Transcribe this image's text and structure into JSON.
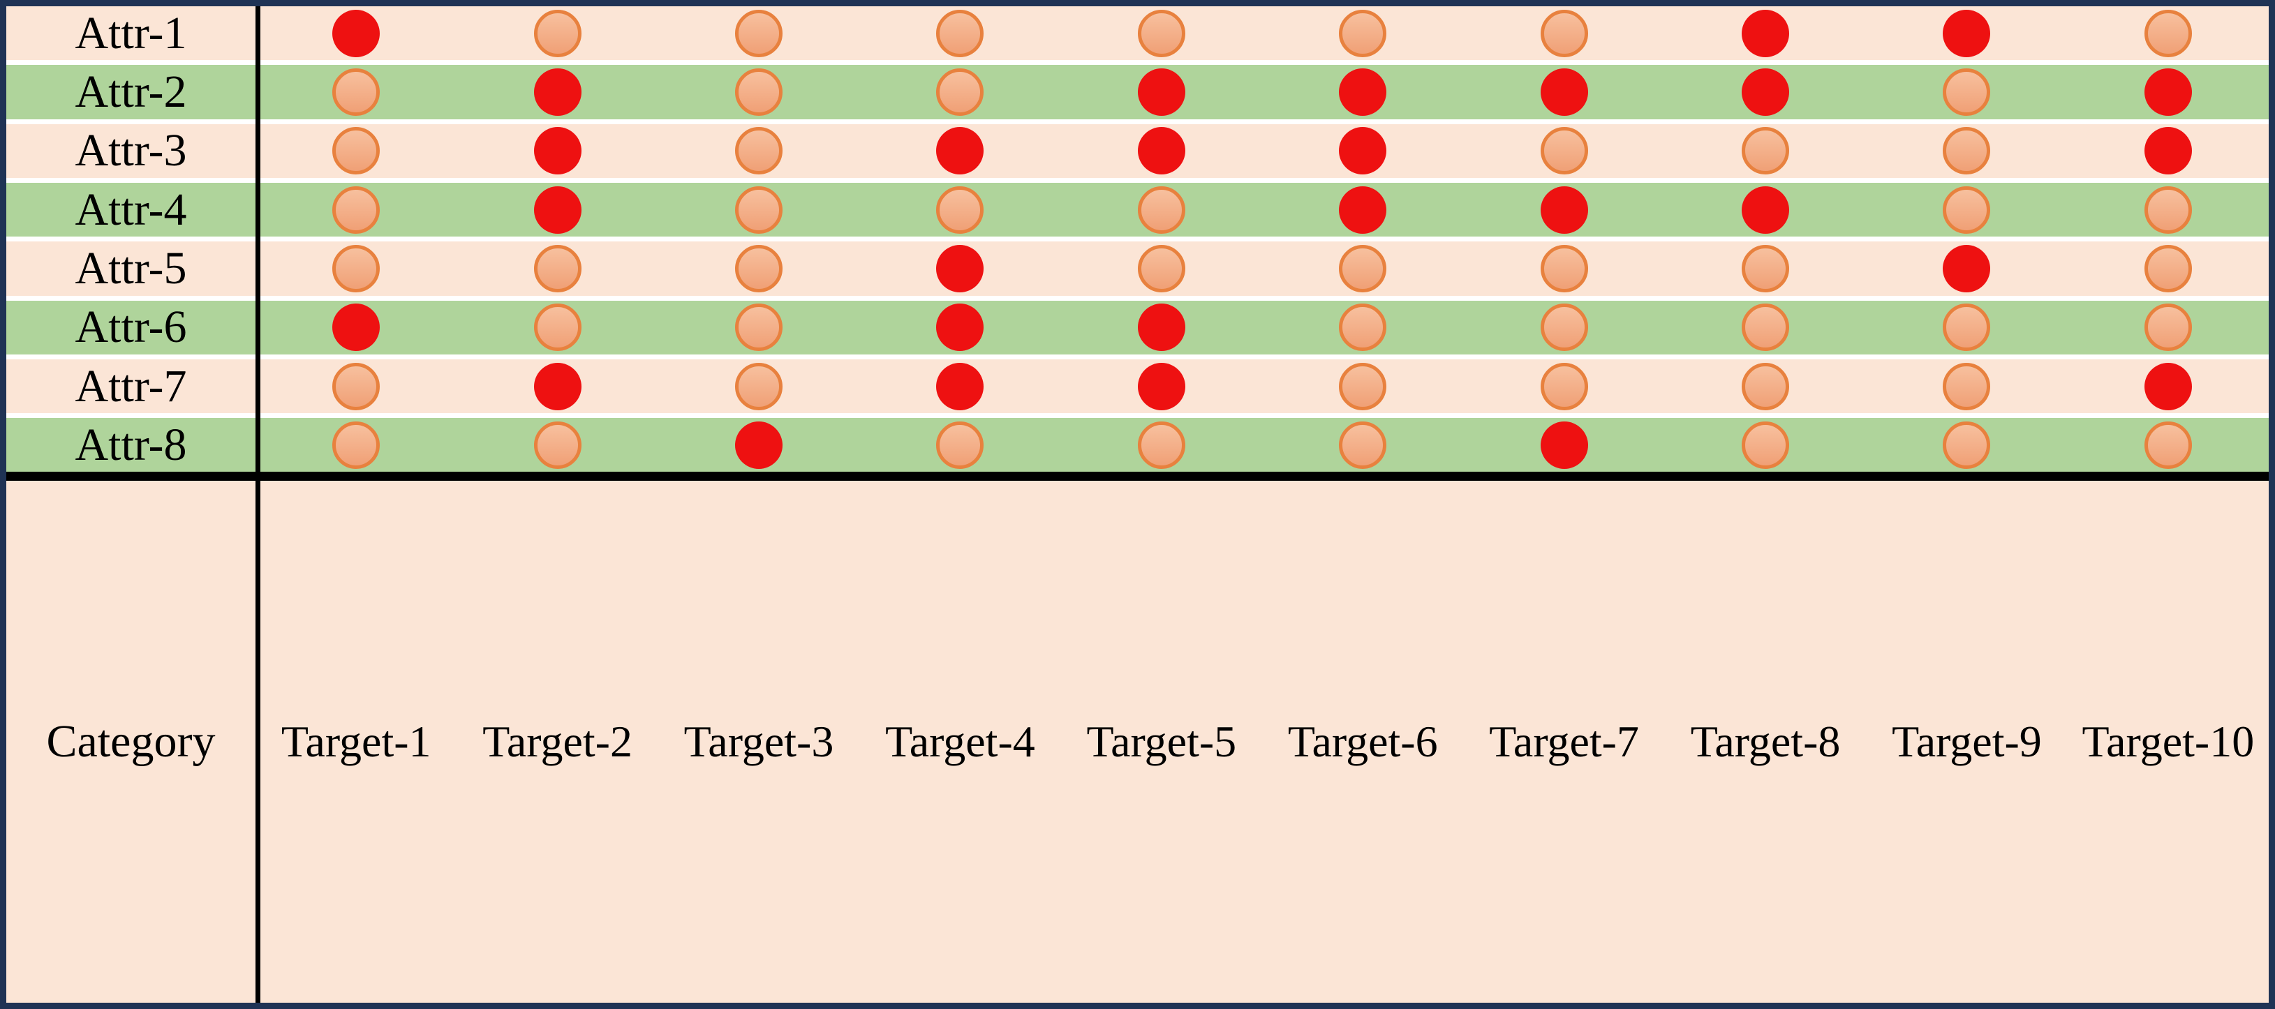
{
  "chart_data": {
    "type": "heatmap",
    "title": "",
    "corner_label": "Category",
    "rows": [
      "Attr-1",
      "Attr-2",
      "Attr-3",
      "Attr-4",
      "Attr-5",
      "Attr-6",
      "Attr-7",
      "Attr-8"
    ],
    "columns": [
      "Target-1",
      "Target-2",
      "Target-3",
      "Target-4",
      "Target-5",
      "Target-6",
      "Target-7",
      "Target-8",
      "Target-9",
      "Target-10"
    ],
    "cell_states_legend": {
      "1": "highlighted-red-dot",
      "0": "light-orange-dot"
    },
    "matrix": [
      [
        1,
        0,
        0,
        0,
        0,
        0,
        0,
        1,
        1,
        0
      ],
      [
        0,
        1,
        0,
        0,
        1,
        1,
        1,
        1,
        0,
        1
      ],
      [
        0,
        1,
        0,
        1,
        1,
        1,
        0,
        0,
        0,
        1
      ],
      [
        0,
        1,
        0,
        0,
        0,
        1,
        1,
        1,
        0,
        0
      ],
      [
        0,
        0,
        0,
        1,
        0,
        0,
        0,
        0,
        1,
        0
      ],
      [
        1,
        0,
        0,
        1,
        1,
        0,
        0,
        0,
        0,
        0
      ],
      [
        0,
        1,
        0,
        1,
        1,
        0,
        0,
        0,
        0,
        1
      ],
      [
        0,
        0,
        1,
        0,
        0,
        0,
        1,
        0,
        0,
        0
      ]
    ],
    "row_stripe_order": [
      "peach",
      "green",
      "peach",
      "green",
      "peach",
      "green",
      "peach",
      "green"
    ],
    "footer_stripe": "peach",
    "legend_position": "none",
    "grid": "row-stripes"
  },
  "colors": {
    "row_peach": "#FBE5D6",
    "row_green": "#AFD49B",
    "red_dot": "#EE1111",
    "light_dot_top": "#F7C09E",
    "light_dot_bottom": "#F0A076",
    "light_dot_border": "#E8813E",
    "outer_border": "#1F3355",
    "grid_line": "#000000",
    "text": "#000000"
  }
}
